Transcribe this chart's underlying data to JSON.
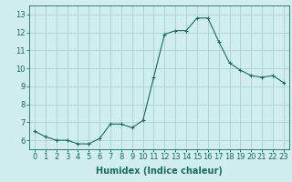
{
  "x": [
    0,
    1,
    2,
    3,
    4,
    5,
    6,
    7,
    8,
    9,
    10,
    11,
    12,
    13,
    14,
    15,
    16,
    17,
    18,
    19,
    20,
    21,
    22,
    23
  ],
  "y": [
    6.5,
    6.2,
    6.0,
    6.0,
    5.8,
    5.8,
    6.1,
    6.9,
    6.9,
    6.7,
    7.1,
    9.5,
    11.9,
    12.1,
    12.1,
    12.8,
    12.8,
    11.5,
    10.3,
    9.9,
    9.6,
    9.5,
    9.6,
    9.2
  ],
  "line_color": "#1a6b5a",
  "marker": "+",
  "marker_color": "#1a6b5a",
  "bg_color": "#d0eeee",
  "grid_color": "#a0cccc",
  "xlabel": "Humidex (Indice chaleur)",
  "xlabel_fontsize": 7,
  "tick_fontsize": 6,
  "ytick_labels": [
    "6",
    "7",
    "8",
    "9",
    "10",
    "11",
    "12",
    "13"
  ],
  "ytick_values": [
    6,
    7,
    8,
    9,
    10,
    11,
    12,
    13
  ],
  "ylim": [
    5.5,
    13.5
  ],
  "xlim": [
    -0.5,
    23.5
  ],
  "xtick_values": [
    0,
    1,
    2,
    3,
    4,
    5,
    6,
    7,
    8,
    9,
    10,
    11,
    12,
    13,
    14,
    15,
    16,
    17,
    18,
    19,
    20,
    21,
    22,
    23
  ]
}
